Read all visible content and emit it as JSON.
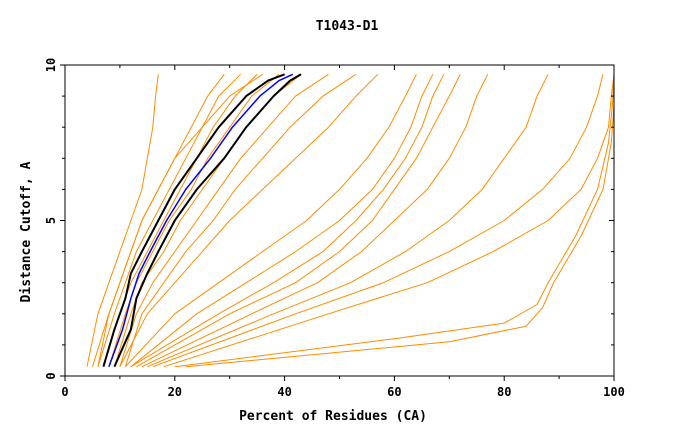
{
  "chart_data": {
    "type": "line",
    "title": "T1043-D1",
    "xlabel": "Percent of Residues (CA)",
    "ylabel": "Distance Cutoff, A",
    "xlim": [
      0,
      100
    ],
    "ylim": [
      0,
      10
    ],
    "x_ticks": [
      "0",
      "20",
      "40",
      "60",
      "80",
      "100"
    ],
    "y_ticks": [
      "0",
      "5",
      "10"
    ],
    "colors": {
      "models": "#ff8c00",
      "highlight_outer": "#000000",
      "highlight_center": "#0000ff",
      "axes": "#000000"
    },
    "series": [
      {
        "group": "models",
        "x": [
          5,
          8,
          10,
          12,
          14,
          17,
          20,
          23,
          26,
          29
        ],
        "y": [
          0.3,
          2,
          3,
          4,
          5,
          6,
          7,
          8,
          9,
          9.7
        ]
      },
      {
        "group": "models",
        "x": [
          6,
          9,
          11,
          13,
          16,
          19,
          22,
          25,
          28,
          32
        ],
        "y": [
          0.3,
          2,
          3,
          4,
          5,
          6,
          7,
          8,
          9,
          9.7
        ]
      },
      {
        "group": "models",
        "x": [
          7,
          10,
          12,
          15,
          18,
          21,
          24,
          27,
          31,
          35
        ],
        "y": [
          0.3,
          2,
          3,
          4,
          5,
          6,
          7,
          8,
          9,
          9.7
        ]
      },
      {
        "group": "models",
        "x": [
          8,
          11,
          13,
          16,
          19,
          23,
          26,
          30,
          34,
          39
        ],
        "y": [
          0.3,
          2,
          3,
          4,
          5,
          6,
          7,
          8,
          9,
          9.7
        ]
      },
      {
        "group": "models",
        "x": [
          9,
          12,
          14,
          18,
          21,
          25,
          29,
          33,
          38,
          43
        ],
        "y": [
          0.3,
          2,
          3,
          4,
          5,
          6,
          7,
          8,
          9,
          9.7
        ]
      },
      {
        "group": "models",
        "x": [
          10,
          13,
          16,
          20,
          24,
          28,
          32,
          37,
          42,
          48
        ],
        "y": [
          0.3,
          2,
          3,
          4,
          5,
          6,
          7,
          8,
          9,
          9.7
        ]
      },
      {
        "group": "models",
        "x": [
          11,
          14,
          18,
          22,
          27,
          31,
          36,
          41,
          47,
          53
        ],
        "y": [
          0.3,
          2,
          3,
          4,
          5,
          6,
          7,
          8,
          9,
          9.7
        ]
      },
      {
        "group": "models",
        "x": [
          4,
          6,
          8,
          10,
          12,
          14,
          15,
          16,
          16.5,
          17
        ],
        "y": [
          0.3,
          2,
          3,
          4,
          5,
          6,
          7,
          8,
          9,
          9.7
        ]
      },
      {
        "group": "models",
        "x": [
          6,
          8,
          10,
          12,
          14,
          17,
          20,
          25,
          30,
          36
        ],
        "y": [
          0.3,
          2,
          3,
          4,
          5,
          6,
          7,
          8,
          9,
          9.7
        ]
      },
      {
        "group": "models",
        "x": [
          10,
          15,
          20,
          25,
          30,
          36,
          42,
          48,
          53,
          57
        ],
        "y": [
          0.3,
          2,
          3,
          4,
          5,
          6,
          7,
          8,
          9,
          9.7
        ]
      },
      {
        "group": "models",
        "x": [
          11,
          20,
          28,
          36,
          44,
          50,
          55,
          59,
          62,
          64
        ],
        "y": [
          0.3,
          2,
          3,
          4,
          5,
          6,
          7,
          8,
          9,
          9.7
        ]
      },
      {
        "group": "models",
        "x": [
          12,
          24,
          33,
          42,
          50,
          56,
          60,
          63,
          65,
          67
        ],
        "y": [
          0.3,
          2,
          3,
          4,
          5,
          6,
          7,
          8,
          9,
          9.7
        ]
      },
      {
        "group": "models",
        "x": [
          12,
          28,
          38,
          47,
          53,
          58,
          62,
          65,
          67,
          69
        ],
        "y": [
          0.3,
          2,
          3,
          4,
          5,
          6,
          7,
          8,
          9,
          9.7
        ]
      },
      {
        "group": "models",
        "x": [
          13,
          30,
          42,
          50,
          56,
          60,
          64,
          67,
          70,
          72
        ],
        "y": [
          0.3,
          2,
          3,
          4,
          5,
          6,
          7,
          8,
          9,
          9.7
        ]
      },
      {
        "group": "models",
        "x": [
          14,
          34,
          46,
          54,
          60,
          66,
          70,
          73,
          75,
          77
        ],
        "y": [
          0.3,
          2,
          3,
          4,
          5,
          6,
          7,
          8,
          9,
          9.7
        ]
      },
      {
        "group": "models",
        "x": [
          15,
          38,
          52,
          62,
          70,
          76,
          80,
          84,
          86,
          88
        ],
        "y": [
          0.3,
          2,
          3,
          4,
          5,
          6,
          7,
          8,
          9,
          9.7
        ]
      },
      {
        "group": "models",
        "x": [
          16,
          42,
          58,
          70,
          80,
          87,
          92,
          95,
          97,
          98
        ],
        "y": [
          0.3,
          2,
          3,
          4,
          5,
          6,
          7,
          8,
          9,
          9.7
        ]
      },
      {
        "group": "models",
        "x": [
          18,
          48,
          66,
          78,
          88,
          94,
          97,
          99,
          99.5,
          100
        ],
        "y": [
          0.3,
          2,
          3,
          4,
          5,
          6,
          7,
          8,
          9,
          9.7
        ]
      },
      {
        "group": "models",
        "x": [
          20,
          60,
          80,
          86,
          88,
          93,
          97,
          99,
          99.7,
          100
        ],
        "y": [
          0.3,
          1.2,
          1.7,
          2.3,
          3,
          4.5,
          6,
          7.5,
          8.7,
          9.7
        ]
      },
      {
        "group": "models",
        "x": [
          22,
          70,
          84,
          87,
          89,
          94,
          98,
          99.5,
          100,
          100
        ],
        "y": [
          0.3,
          1.1,
          1.6,
          2.2,
          3,
          4.5,
          6,
          7.5,
          8.7,
          9.7
        ]
      },
      {
        "group": "best_outer",
        "x": [
          7,
          9,
          11,
          12,
          14,
          17,
          20,
          24,
          28,
          33,
          37,
          40
        ],
        "y": [
          0.3,
          1.5,
          2.5,
          3.3,
          4,
          5,
          6,
          7,
          8,
          9,
          9.5,
          9.7
        ]
      },
      {
        "group": "best_outer",
        "x": [
          9,
          12,
          13,
          15,
          17,
          20,
          24,
          29,
          33,
          38,
          41,
          43
        ],
        "y": [
          0.3,
          1.5,
          2.5,
          3.3,
          4,
          5,
          6,
          7,
          8,
          9,
          9.5,
          9.7
        ]
      },
      {
        "group": "best_center",
        "x": [
          8,
          10.5,
          12,
          13.5,
          15.5,
          18.5,
          22,
          26.5,
          30.5,
          35.5,
          39,
          41.5
        ],
        "y": [
          0.3,
          1.5,
          2.5,
          3.3,
          4,
          5,
          6,
          7,
          8,
          9,
          9.5,
          9.7
        ]
      }
    ]
  }
}
